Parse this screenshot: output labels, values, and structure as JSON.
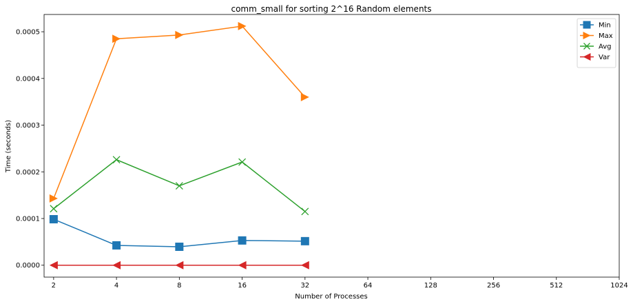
{
  "chart_data": {
    "type": "line",
    "title": "comm_small for sorting 2^16 Random elements",
    "xlabel": "Number of Processes",
    "ylabel": "Time (seconds)",
    "x_scale": "log2",
    "x_ticks": [
      2,
      4,
      8,
      16,
      32,
      64,
      128,
      256,
      512,
      1024
    ],
    "x_tick_labels": [
      "2",
      "4",
      "8",
      "16",
      "32",
      "64",
      "128",
      "256",
      "512",
      "1024"
    ],
    "xlim": [
      1.8,
      1024
    ],
    "y_ticks": [
      0,
      0.0001,
      0.0002,
      0.0003,
      0.0004,
      0.0005
    ],
    "y_tick_labels": [
      "0.0000",
      "0.0001",
      "0.0002",
      "0.0003",
      "0.0004",
      "0.0005"
    ],
    "ylim": [
      -2.55e-05,
      0.000537
    ],
    "grid": false,
    "legend_position": "top-right",
    "x": [
      2,
      4,
      8,
      16,
      32
    ],
    "series": [
      {
        "name": "Min",
        "color": "#1f77b4",
        "marker": "square",
        "values": [
          9.85e-05,
          4.25e-05,
          3.95e-05,
          5.3e-05,
          5.15e-05
        ]
      },
      {
        "name": "Max",
        "color": "#ff7f0e",
        "marker": "triangle-right",
        "values": [
          0.000143,
          0.000485,
          0.000493,
          0.000512,
          0.00036
        ]
      },
      {
        "name": "Avg",
        "color": "#2ca02c",
        "marker": "x",
        "values": [
          0.000121,
          0.000226,
          0.00017,
          0.000221,
          0.000115
        ]
      },
      {
        "name": "Var",
        "color": "#d62728",
        "marker": "triangle-left",
        "values": [
          0.0,
          0.0,
          0.0,
          0.0,
          0.0
        ]
      }
    ]
  }
}
